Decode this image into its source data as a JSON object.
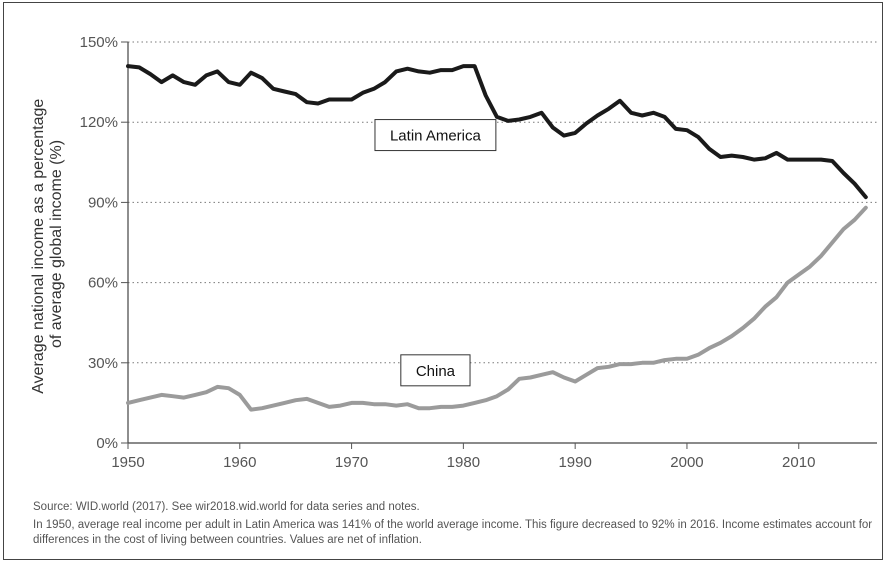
{
  "chart_data": {
    "type": "line",
    "ylabel_lines": [
      "Average national income as a percentage",
      "of average global income (%)"
    ],
    "xlabel": "",
    "xlim": [
      1950,
      2017
    ],
    "ylim": [
      0,
      150
    ],
    "x_ticks": [
      1950,
      1960,
      1970,
      1980,
      1990,
      2000,
      2010
    ],
    "y_ticks": [
      0,
      30,
      60,
      90,
      120,
      150
    ],
    "y_tick_labels": [
      "0%",
      "30%",
      "60%",
      "90%",
      "120%",
      "150%"
    ],
    "grid": "horizontal dotted",
    "series": [
      {
        "name": "Latin America",
        "color": "#1a1a1a",
        "label_x": 1977.5,
        "label_y": 115,
        "x": [
          1950,
          1951,
          1952,
          1953,
          1954,
          1955,
          1956,
          1957,
          1958,
          1959,
          1960,
          1961,
          1962,
          1963,
          1964,
          1965,
          1966,
          1967,
          1968,
          1969,
          1970,
          1971,
          1972,
          1973,
          1974,
          1975,
          1976,
          1977,
          1978,
          1979,
          1980,
          1981,
          1982,
          1983,
          1984,
          1985,
          1986,
          1987,
          1988,
          1989,
          1990,
          1991,
          1992,
          1993,
          1994,
          1995,
          1996,
          1997,
          1998,
          1999,
          2000,
          2001,
          2002,
          2003,
          2004,
          2005,
          2006,
          2007,
          2008,
          2009,
          2010,
          2011,
          2012,
          2013,
          2014,
          2015,
          2016
        ],
        "values": [
          141,
          140.5,
          138,
          135,
          137.5,
          135,
          134,
          137.5,
          139,
          135,
          134,
          138.5,
          136.5,
          132.5,
          131.5,
          130.5,
          127.5,
          127,
          128.5,
          128.5,
          128.5,
          131,
          132.5,
          135,
          139,
          140,
          139,
          138.5,
          139.5,
          139.5,
          141,
          141,
          130,
          122,
          120.5,
          121,
          122,
          123.5,
          118,
          115,
          116,
          119.5,
          122.5,
          125,
          128,
          123.5,
          122.5,
          123.5,
          122,
          117.5,
          117,
          114.5,
          110,
          107,
          107.5,
          107,
          106,
          106.5,
          108.5,
          106,
          106,
          106,
          106,
          105.5,
          101,
          97,
          92
        ]
      },
      {
        "name": "China",
        "color": "#9b9b9b",
        "label_x": 1977.5,
        "label_y": 27,
        "x": [
          1950,
          1951,
          1952,
          1953,
          1954,
          1955,
          1956,
          1957,
          1958,
          1959,
          1960,
          1961,
          1962,
          1963,
          1964,
          1965,
          1966,
          1967,
          1968,
          1969,
          1970,
          1971,
          1972,
          1973,
          1974,
          1975,
          1976,
          1977,
          1978,
          1979,
          1980,
          1981,
          1982,
          1983,
          1984,
          1985,
          1986,
          1987,
          1988,
          1989,
          1990,
          1991,
          1992,
          1993,
          1994,
          1995,
          1996,
          1997,
          1998,
          1999,
          2000,
          2001,
          2002,
          2003,
          2004,
          2005,
          2006,
          2007,
          2008,
          2009,
          2010,
          2011,
          2012,
          2013,
          2014,
          2015,
          2016
        ],
        "values": [
          15,
          16,
          17,
          18,
          17.5,
          17,
          18,
          19,
          21,
          20.5,
          18,
          12.5,
          13,
          14,
          15,
          16,
          16.5,
          15,
          13.5,
          14,
          15,
          15,
          14.5,
          14.5,
          14,
          14.5,
          13,
          13,
          13.5,
          13.5,
          14,
          15,
          16,
          17.5,
          20,
          24,
          24.5,
          25.5,
          26.5,
          24.5,
          23,
          25.5,
          28,
          28.5,
          29.5,
          29.5,
          30,
          30,
          31,
          31.5,
          31.5,
          33,
          35.5,
          37.5,
          40,
          43,
          46.5,
          51,
          54.5,
          60,
          63,
          66,
          70,
          75,
          80,
          83.5,
          88
        ]
      }
    ]
  },
  "notes": {
    "source": "Source: WID.world (2017). See wir2018.wid.world for data series and notes.",
    "description": "In 1950, average real income per adult in Latin America was 141% of the world average income. This figure decreased to 92% in 2016. Income estimates account for differences in the cost of living between countries. Values are net of inflation."
  }
}
